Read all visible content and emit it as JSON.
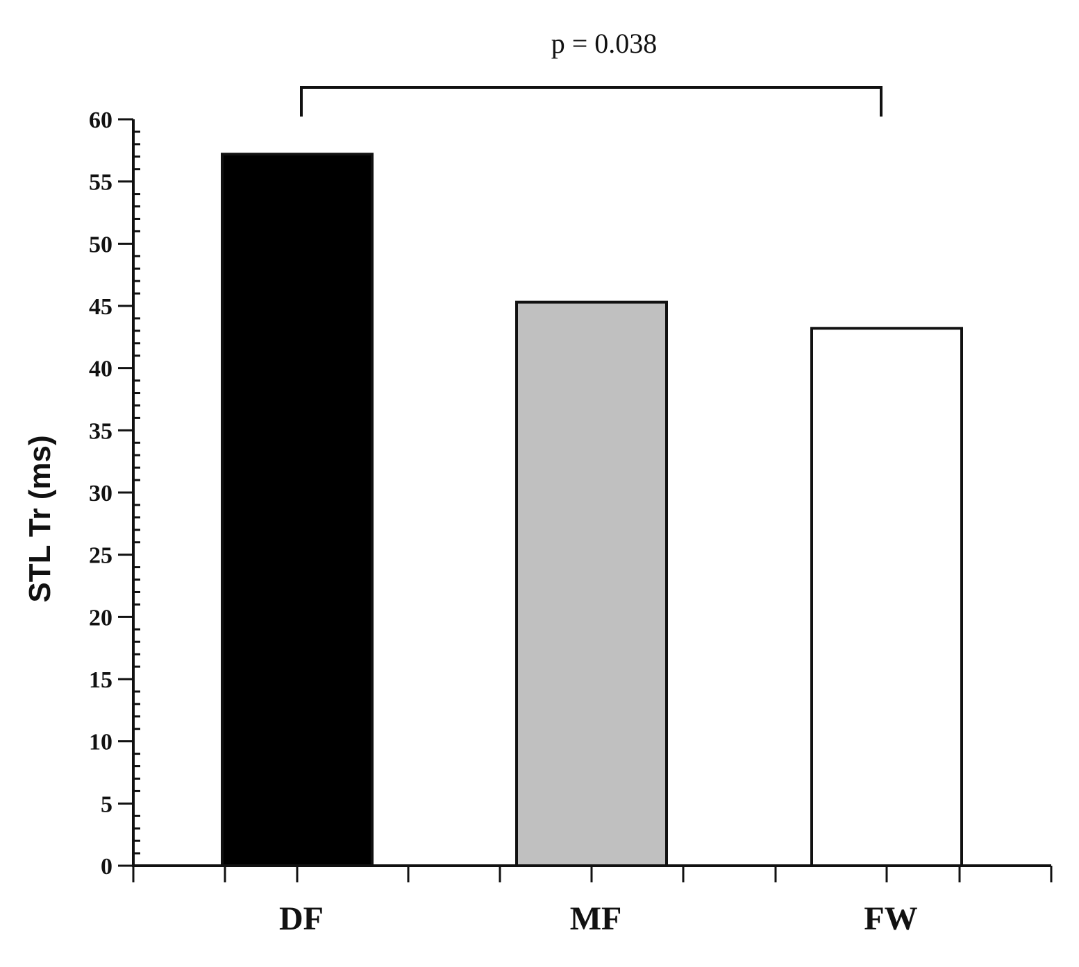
{
  "chart_data": {
    "type": "bar",
    "title": "",
    "xlabel": "",
    "ylabel": "STL Tr (ms)",
    "categories": [
      "DF",
      "MF",
      "FW"
    ],
    "values": [
      57.2,
      45.3,
      43.2
    ],
    "bar_colors": [
      "#000000",
      "#c0c0c0",
      "#ffffff"
    ],
    "ylim": [
      0,
      60
    ],
    "y_ticks": [
      0,
      5,
      10,
      15,
      20,
      25,
      30,
      35,
      40,
      45,
      50,
      55,
      60
    ],
    "y_tick_labels": [
      "0",
      "5",
      "10",
      "15",
      "20",
      "25",
      "30",
      "35",
      "40",
      "45",
      "50",
      "55",
      "60"
    ],
    "y_minor_step": 1,
    "grid": false,
    "legend": "none",
    "annotation": {
      "text": "p = 0.038",
      "from_category": "DF",
      "to_category": "FW"
    }
  }
}
